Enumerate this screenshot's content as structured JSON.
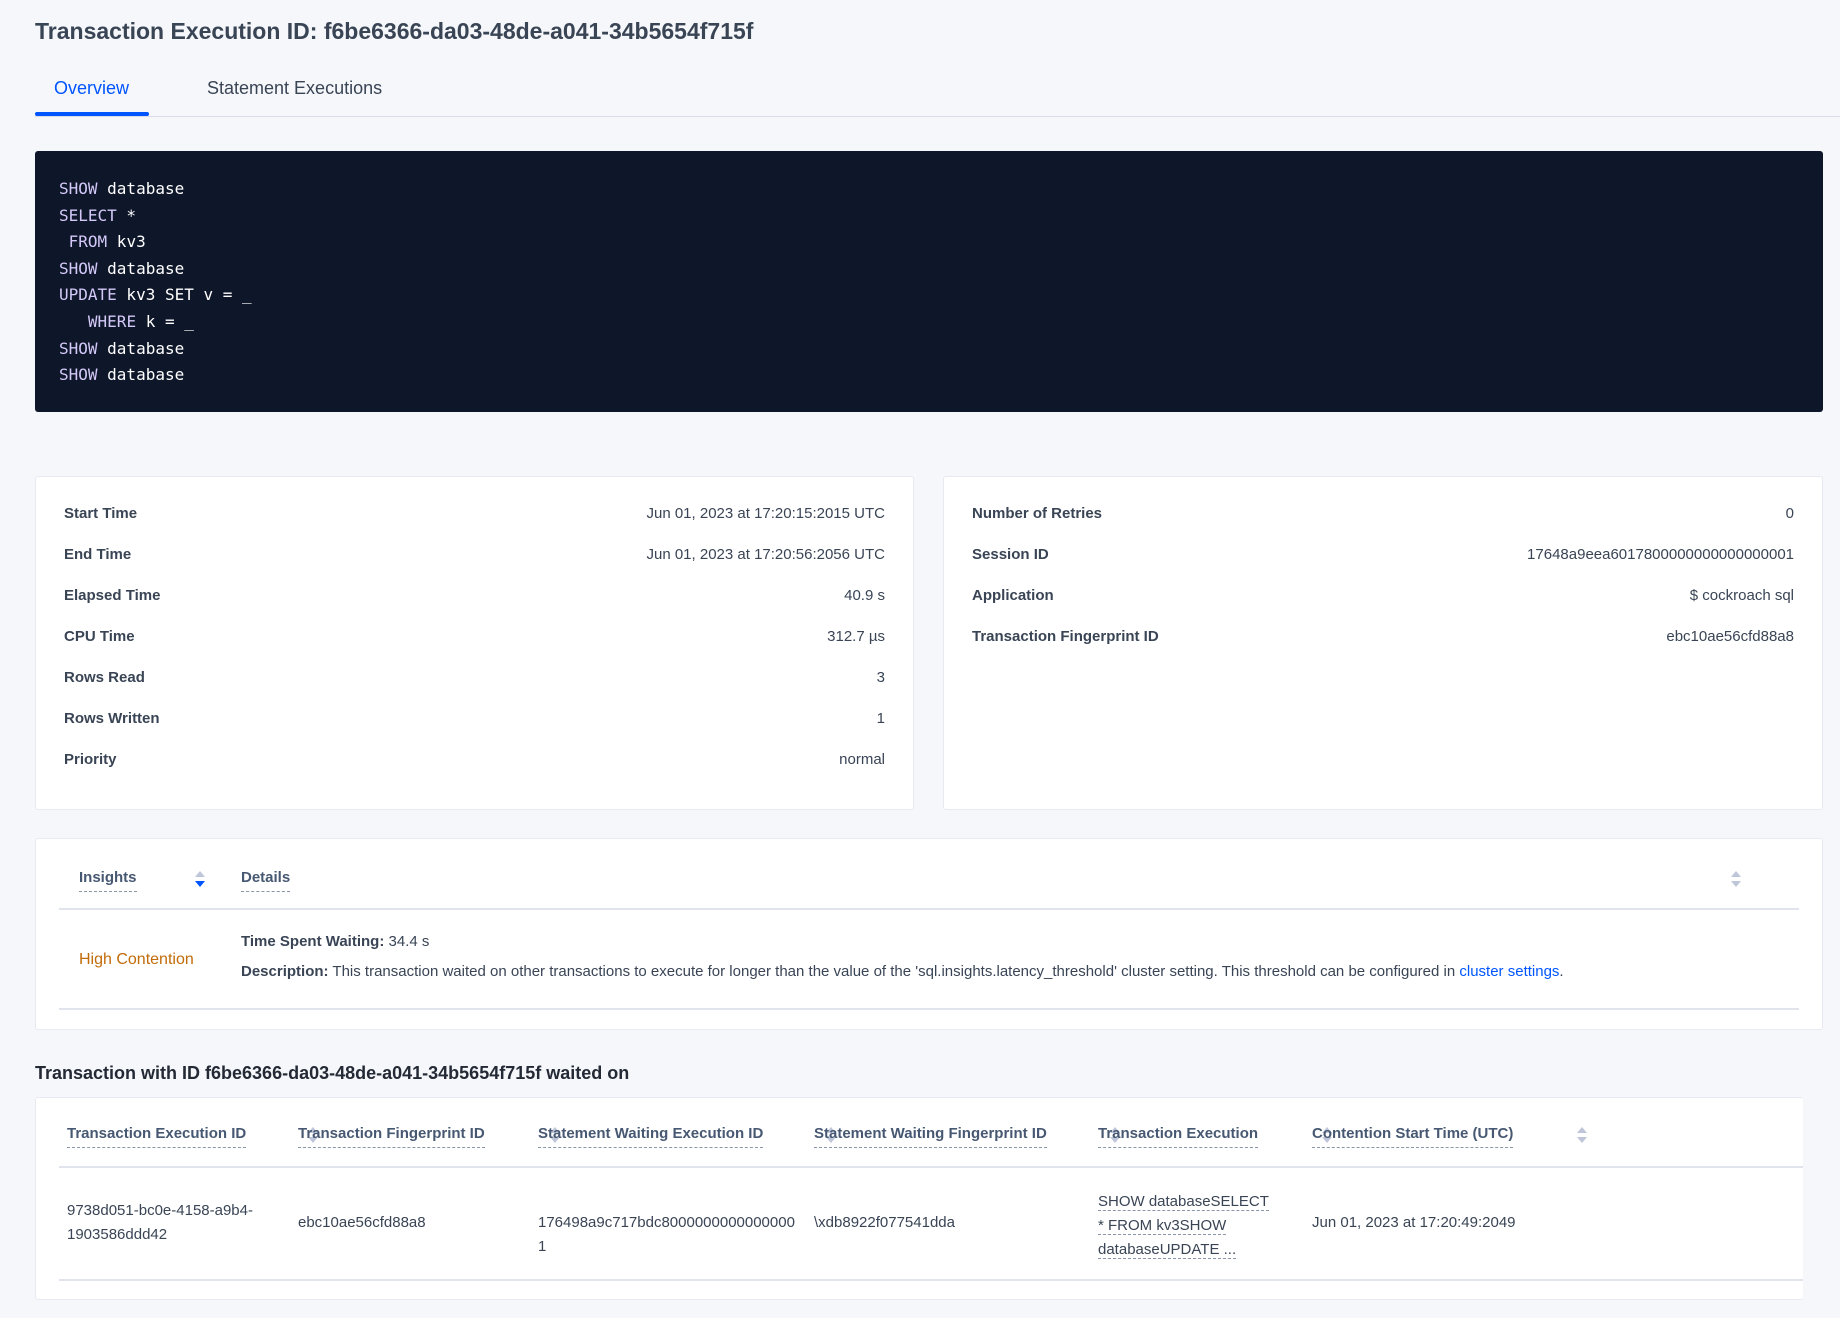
{
  "title": "Transaction Execution ID: f6be6366-da03-48de-a041-34b5654f715f",
  "tabs": [
    {
      "label": "Overview",
      "active": true
    },
    {
      "label": "Statement Executions",
      "active": false
    }
  ],
  "sql": [
    {
      "kw": "SHOW",
      "rest": " database",
      "indent": ""
    },
    {
      "kw": "SELECT",
      "rest": " *",
      "indent": ""
    },
    {
      "kw": "FROM",
      "rest": " kv3",
      "indent": " "
    },
    {
      "kw": "SHOW",
      "rest": " database",
      "indent": ""
    },
    {
      "kw": "UPDATE",
      "rest": " kv3 SET v = _",
      "indent": ""
    },
    {
      "kw": "WHERE",
      "rest": " k = _",
      "indent": "   "
    },
    {
      "kw": "SHOW",
      "rest": " database",
      "indent": ""
    },
    {
      "kw": "SHOW",
      "rest": " database",
      "indent": ""
    }
  ],
  "summary_left": [
    {
      "label": "Start Time",
      "value": "Jun 01, 2023 at 17:20:15:2015 UTC"
    },
    {
      "label": "End Time",
      "value": "Jun 01, 2023 at 17:20:56:2056 UTC"
    },
    {
      "label": "Elapsed Time",
      "value": "40.9 s"
    },
    {
      "label": "CPU Time",
      "value": "312.7 µs"
    },
    {
      "label": "Rows Read",
      "value": "3"
    },
    {
      "label": "Rows Written",
      "value": "1"
    },
    {
      "label": "Priority",
      "value": "normal"
    }
  ],
  "summary_right": [
    {
      "label": "Number of Retries",
      "value": "0"
    },
    {
      "label": "Session ID",
      "value": "17648a9eea6017800000000000000001"
    },
    {
      "label": "Application",
      "value": "$ cockroach sql"
    },
    {
      "label": "Transaction Fingerprint ID",
      "value": "ebc10ae56cfd88a8",
      "link": true
    }
  ],
  "insights": {
    "headers": [
      "Insights",
      "Details"
    ],
    "row": {
      "insight": "High Contention",
      "insight_color": "#c26b09",
      "time_label": "Time Spent Waiting:",
      "time_value": "34.4 s",
      "desc_label": "Description:",
      "desc_text": "This transaction waited on other transactions to execute for longer than the value of the 'sql.insights.latency_threshold' cluster setting. This threshold can be configured in",
      "desc_link": "cluster settings",
      "desc_end": "."
    }
  },
  "waited_heading": "Transaction with ID f6be6366-da03-48de-a041-34b5654f715f waited on",
  "waited_table": {
    "headers": [
      "Transaction Execution ID",
      "Transaction Fingerprint ID",
      "Statement Waiting Execution ID",
      "Statement Waiting Fingerprint ID",
      "Transaction Execution",
      "Contention Start Time (UTC)"
    ],
    "rows": [
      [
        "9738d051-bc0e-4158-a9b4-1903586ddd42",
        "ebc10ae56cfd88a8",
        "176498a9c717bdc80000000000000001",
        "\\xdb8922f077541dda",
        "SHOW databaseSELECT * FROM kv3SHOW databaseUPDATE ...",
        "Jun 01, 2023 at 17:20:49:2049"
      ]
    ]
  },
  "colors": {
    "accent": "#0055ff",
    "code_bg": "#0e1629",
    "warning": "#c26b09"
  }
}
